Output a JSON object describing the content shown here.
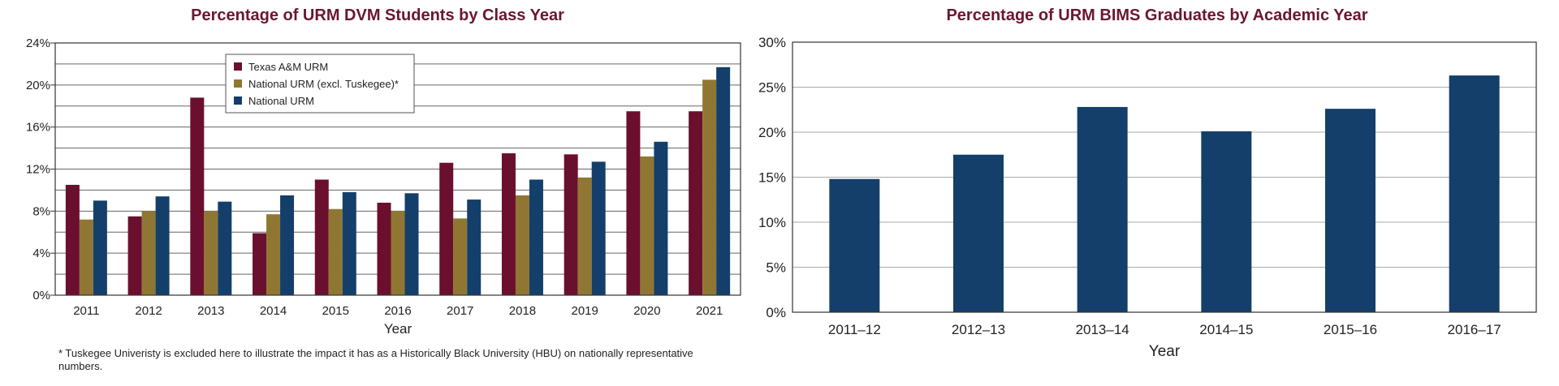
{
  "chart_data": [
    {
      "type": "bar",
      "title": "Percentage of URM DVM Students by Class Year",
      "xlabel": "Year",
      "ylabel": "",
      "ylim": [
        0,
        24
      ],
      "yticks": [
        "0%",
        "4%",
        "8%",
        "12%",
        "16%",
        "20%",
        "24%"
      ],
      "categories": [
        "2011",
        "2012",
        "2013",
        "2014",
        "2015",
        "2016",
        "2017",
        "2018",
        "2019",
        "2020",
        "2021"
      ],
      "series": [
        {
          "name": "Texas A&M URM",
          "color": "#6b0f2e",
          "values": [
            10.5,
            7.5,
            18.8,
            5.9,
            11.0,
            8.8,
            12.6,
            13.5,
            13.4,
            17.5,
            17.5
          ]
        },
        {
          "name": "National URM (excl. Tuskegee)*",
          "color": "#8f7733",
          "values": [
            7.2,
            8.0,
            8.0,
            7.7,
            8.2,
            8.0,
            7.3,
            9.5,
            11.2,
            13.2,
            20.5
          ]
        },
        {
          "name": "National URM",
          "color": "#143f6b",
          "values": [
            9.0,
            9.4,
            8.9,
            9.5,
            9.8,
            9.7,
            9.1,
            11.0,
            12.7,
            14.6,
            21.7
          ]
        }
      ],
      "legend_position": "top-center",
      "grid": true,
      "footnote": "* Tuskegee Univeristy is excluded here to illustrate the impact it has as a Historically Black University (HBU) on nationally representative numbers."
    },
    {
      "type": "bar",
      "title": "Percentage of URM BIMS Graduates by Academic Year",
      "xlabel": "Year",
      "ylabel": "",
      "ylim": [
        0,
        30
      ],
      "yticks": [
        "0%",
        "5%",
        "10%",
        "15%",
        "20%",
        "25%",
        "30%"
      ],
      "categories": [
        "2011–12",
        "2012–13",
        "2013–14",
        "2014–15",
        "2015–16",
        "2016–17"
      ],
      "series": [
        {
          "color": "#143f6b",
          "values": [
            14.8,
            17.5,
            22.8,
            20.1,
            22.6,
            26.3
          ]
        }
      ],
      "grid": true
    }
  ]
}
